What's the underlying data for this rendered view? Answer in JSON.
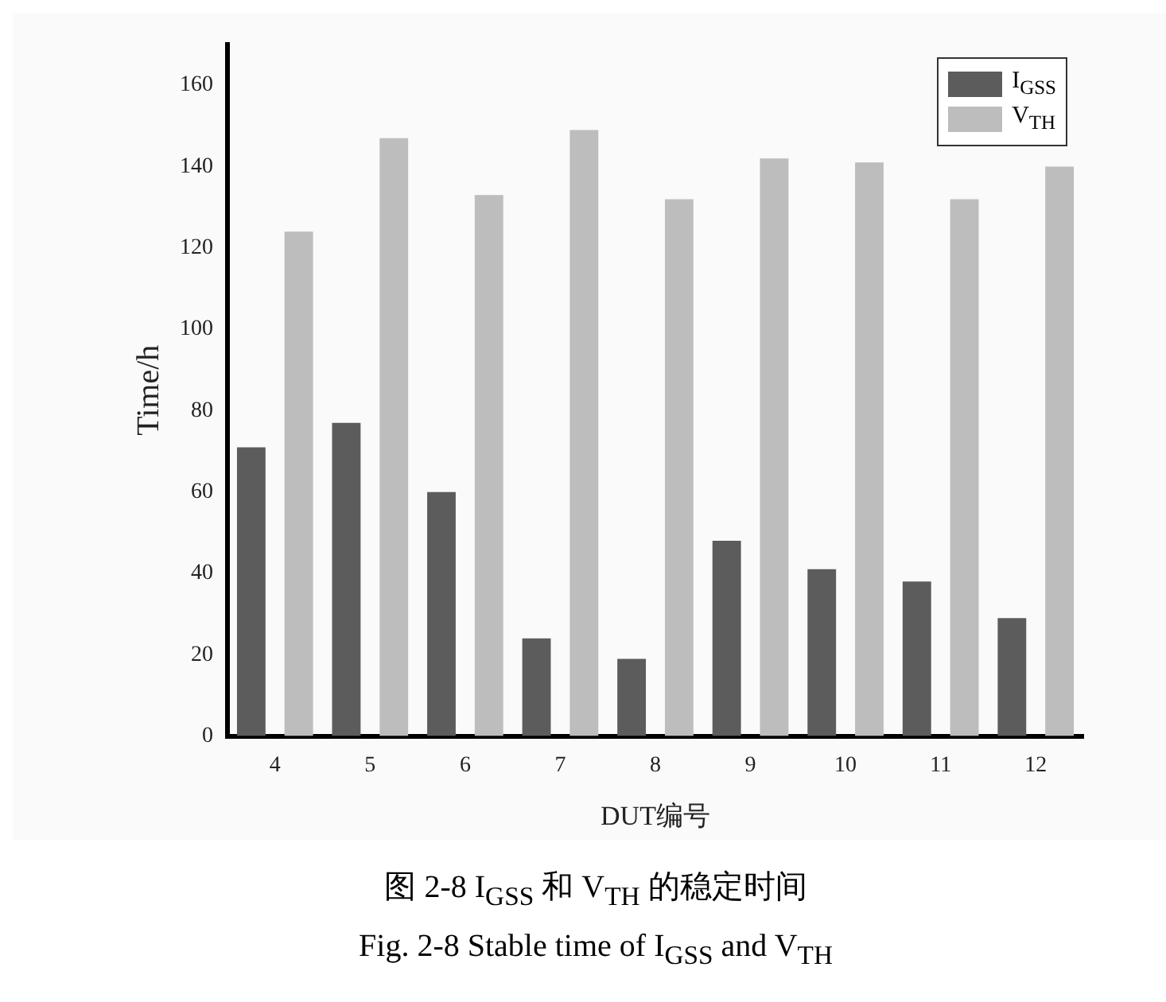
{
  "chart_data": {
    "type": "bar",
    "xlabel": "DUT编号",
    "ylabel": "Time/h",
    "categories": [
      "4",
      "5",
      "6",
      "7",
      "8",
      "9",
      "10",
      "11",
      "12"
    ],
    "series": [
      {
        "name": "I$_{GSS}$",
        "color": "#5c5c5c",
        "values": [
          71,
          77,
          60,
          24,
          19,
          48,
          41,
          38,
          29
        ]
      },
      {
        "name": "V$_{TH}$",
        "color": "#bdbdbd",
        "values": [
          124,
          147,
          133,
          149,
          132,
          142,
          141,
          132,
          140
        ]
      }
    ],
    "ylim": [
      0,
      170
    ],
    "yticks": [
      0,
      20,
      40,
      60,
      80,
      100,
      120,
      140,
      160
    ],
    "grid": false,
    "legend": "top right",
    "annotations": [
      "图 2-8 I$_{GSS}$ 和 V$_{TH}$ 的稳定时间",
      "Fig. 2-8 Stable time of I$_{GSS}$ and V$_{TH}$"
    ]
  }
}
